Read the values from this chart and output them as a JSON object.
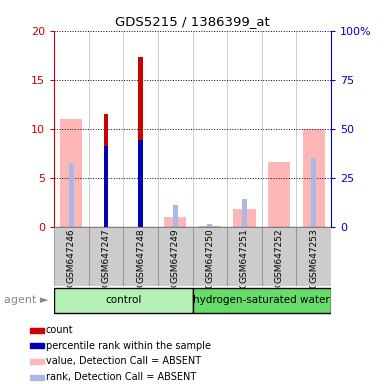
{
  "title": "GDS5215 / 1386399_at",
  "samples": [
    "GSM647246",
    "GSM647247",
    "GSM647248",
    "GSM647249",
    "GSM647250",
    "GSM647251",
    "GSM647252",
    "GSM647253"
  ],
  "red_bars": [
    0,
    11.5,
    17.3,
    0,
    0,
    0,
    0,
    0
  ],
  "blue_bars": [
    0,
    8.2,
    8.8,
    0,
    0,
    0,
    0,
    0
  ],
  "pink_bars": [
    11.0,
    0,
    0,
    1.0,
    0.1,
    1.8,
    6.6,
    10.0
  ],
  "lightblue_bars": [
    6.5,
    0,
    0,
    2.2,
    0.3,
    2.8,
    0,
    7.0
  ],
  "ylim_left": [
    0,
    20
  ],
  "ylim_right": [
    0,
    100
  ],
  "yticks_left": [
    0,
    5,
    10,
    15,
    20
  ],
  "yticks_right": [
    0,
    25,
    50,
    75,
    100
  ],
  "ytick_labels_left": [
    "0",
    "5",
    "10",
    "15",
    "20"
  ],
  "ytick_labels_right": [
    "0",
    "25",
    "50",
    "75",
    "100%"
  ],
  "left_axis_color": "#cc0000",
  "right_axis_color": "#0000cc",
  "legend_items": [
    {
      "label": "count",
      "color": "#cc0000"
    },
    {
      "label": "percentile rank within the sample",
      "color": "#0000bb"
    },
    {
      "label": "value, Detection Call = ABSENT",
      "color": "#ffb6b6"
    },
    {
      "label": "rank, Detection Call = ABSENT",
      "color": "#aab8e8"
    }
  ],
  "group_info": [
    {
      "xmin": 0,
      "xmax": 4,
      "label": "control",
      "color": "#b3f0b3"
    },
    {
      "xmin": 4,
      "xmax": 8,
      "label": "hydrogen-saturated water",
      "color": "#66dd66"
    }
  ]
}
